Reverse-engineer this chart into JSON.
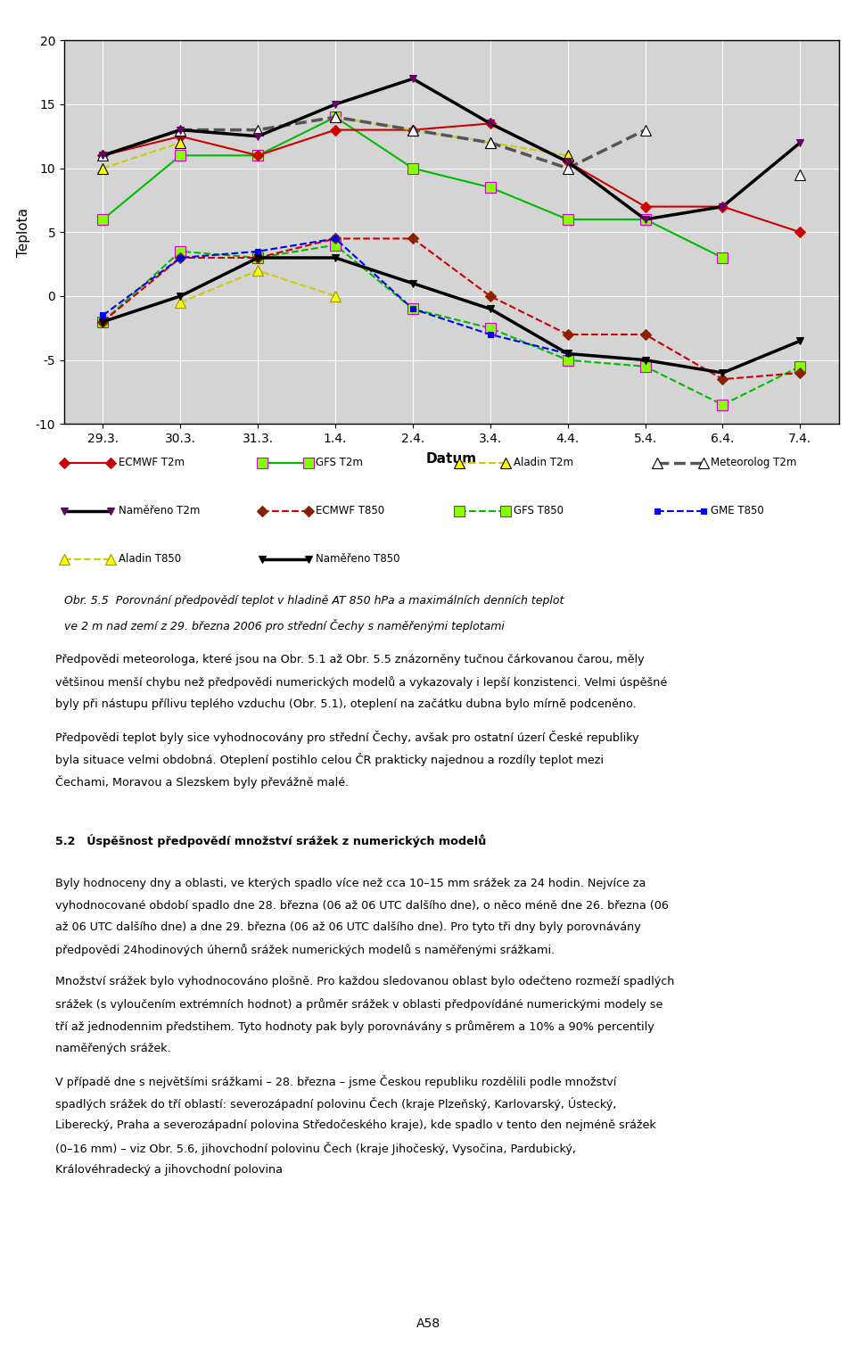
{
  "x_labels": [
    "29.3.",
    "30.3.",
    "31.3.",
    "1.4.",
    "2.4.",
    "3.4.",
    "4.4.",
    "5.4.",
    "6.4.",
    "7.4."
  ],
  "x_values": [
    0,
    1,
    2,
    3,
    4,
    5,
    6,
    7,
    8,
    9
  ],
  "series": {
    "ECMWF T2m": {
      "values": [
        11,
        12.5,
        11,
        13,
        13,
        13.5,
        10.5,
        7,
        7,
        5
      ],
      "color": "#CC0000",
      "linestyle": "-",
      "marker": "D",
      "markercolor": "#CC0000",
      "markeredgecolor": "#CC0000",
      "linewidth": 1.5,
      "markersize": 6
    },
    "Naměřeno T2m": {
      "values": [
        11,
        13,
        12.5,
        15,
        17,
        13.5,
        10.5,
        6,
        7,
        12
      ],
      "color": "#000000",
      "linestyle": "-",
      "marker": "v",
      "markercolor": "#660066",
      "markeredgecolor": "#660066",
      "linewidth": 2.5,
      "markersize": 6
    },
    "Aladin T850": {
      "values": [
        null,
        -0.5,
        2,
        0,
        null,
        null,
        null,
        null,
        null,
        null
      ],
      "color": "#CCCC00",
      "linestyle": "--",
      "marker": "^",
      "markercolor": "#FFFF00",
      "markeredgecolor": "#999900",
      "linewidth": 1.5,
      "markersize": 8
    },
    "GFS T2m": {
      "values": [
        6,
        11,
        11,
        14,
        10,
        8.5,
        6,
        6,
        3,
        null
      ],
      "color": "#00BB00",
      "linestyle": "-",
      "marker": "s",
      "markercolor": "#88FF00",
      "markeredgecolor": "#CC00CC",
      "linewidth": 1.5,
      "markersize": 8
    },
    "ECMWF T850": {
      "values": [
        -2,
        3,
        3,
        4.5,
        4.5,
        0,
        -3,
        -3,
        -6.5,
        -6
      ],
      "color": "#CC0000",
      "linestyle": "--",
      "marker": "D",
      "markercolor": "#882200",
      "markeredgecolor": "#882200",
      "linewidth": 1.5,
      "markersize": 6
    },
    "Naměřeno T850": {
      "values": [
        -2,
        0,
        3,
        3,
        1,
        -1,
        -4.5,
        -5,
        -6,
        -3.5
      ],
      "color": "#000000",
      "linestyle": "-",
      "marker": "v",
      "markercolor": "#000000",
      "markeredgecolor": "#000000",
      "linewidth": 2.5,
      "markersize": 6
    },
    "Aladin T2m": {
      "values": [
        10,
        12,
        null,
        14,
        13,
        12,
        11,
        null,
        null,
        null
      ],
      "color": "#CCCC00",
      "linestyle": "--",
      "marker": "^",
      "markercolor": "#FFFF00",
      "markeredgecolor": "#000000",
      "linewidth": 1.5,
      "markersize": 9
    },
    "GFS T850": {
      "values": [
        -2,
        3.5,
        3,
        4,
        -1,
        -2.5,
        -5,
        -5.5,
        -8.5,
        -5.5
      ],
      "color": "#00BB00",
      "linestyle": "--",
      "marker": "s",
      "markercolor": "#88FF00",
      "markeredgecolor": "#CC00CC",
      "linewidth": 1.5,
      "markersize": 8
    },
    "Meteorolog T2m": {
      "values": [
        11,
        13,
        13,
        14,
        13,
        12,
        10,
        13,
        null,
        9.5
      ],
      "color": "#555555",
      "linestyle": "--",
      "marker": "^",
      "markercolor": "#FFFFFF",
      "markeredgecolor": "#000000",
      "linewidth": 2.5,
      "markersize": 9
    },
    "GME T850": {
      "values": [
        -1.5,
        3,
        3.5,
        4.5,
        -1,
        -3,
        -4.5,
        null,
        null,
        null
      ],
      "color": "#0000EE",
      "linestyle": "--",
      "marker": "s",
      "markercolor": "#0000EE",
      "markeredgecolor": "#0000EE",
      "linewidth": 1.5,
      "markersize": 5
    }
  },
  "ylim": [
    -10,
    20
  ],
  "yticks": [
    -10,
    -5,
    0,
    5,
    10,
    15,
    20
  ],
  "ylabel": "Teplota",
  "xlabel": "Datum",
  "bg_color": "#FFFFFF",
  "plot_bg": "#D4D4D4",
  "grid_color": "#FFFFFF",
  "legend_rows": [
    [
      {
        "label": "ECMWF T2m",
        "color": "#CC0000",
        "linestyle": "-",
        "marker": "D",
        "mfc": "#CC0000",
        "mec": "#CC0000",
        "lw": 1.5,
        "ms": 6
      },
      {
        "label": "GFS T2m",
        "color": "#00BB00",
        "linestyle": "-",
        "marker": "s",
        "mfc": "#88FF00",
        "mec": "#CC00CC",
        "lw": 1.5,
        "ms": 8
      },
      {
        "label": "Aladin T2m",
        "color": "#CCCC00",
        "linestyle": "--",
        "marker": "^",
        "mfc": "#FFFF00",
        "mec": "#000000",
        "lw": 1.5,
        "ms": 9
      },
      {
        "label": "Meteorolog T2m",
        "color": "#555555",
        "linestyle": "--",
        "marker": "^",
        "mfc": "#FFFFFF",
        "mec": "#000000",
        "lw": 2.5,
        "ms": 9
      }
    ],
    [
      {
        "label": "Naměřeno T2m",
        "color": "#000000",
        "linestyle": "-",
        "marker": "v",
        "mfc": "#660066",
        "mec": "#660066",
        "lw": 2.5,
        "ms": 6
      },
      {
        "label": "ECMWF T850",
        "color": "#CC0000",
        "linestyle": "--",
        "marker": "D",
        "mfc": "#882200",
        "mec": "#882200",
        "lw": 1.5,
        "ms": 6
      },
      {
        "label": "GFS T850",
        "color": "#00BB00",
        "linestyle": "--",
        "marker": "s",
        "mfc": "#88FF00",
        "mec": "#CC00CC",
        "lw": 1.5,
        "ms": 8
      },
      {
        "label": "GME T850",
        "color": "#0000EE",
        "linestyle": "--",
        "marker": "s",
        "mfc": "#0000EE",
        "mec": "#0000EE",
        "lw": 1.5,
        "ms": 5
      }
    ],
    [
      {
        "label": "Aladin T850",
        "color": "#CCCC00",
        "linestyle": "--",
        "marker": "^",
        "mfc": "#FFFF00",
        "mec": "#999900",
        "lw": 1.5,
        "ms": 8
      },
      {
        "label": "Naměřeno T850",
        "color": "#000000",
        "linestyle": "-",
        "marker": "v",
        "mfc": "#000000",
        "mec": "#000000",
        "lw": 2.5,
        "ms": 6
      }
    ]
  ],
  "caption": "Obr. 5.5  Porovnání předpovědí teplot v hladině AT 850 hPa a maximálních denních teplot\nve 2 m nad zemí z 29. března 2006 pro střední Čechy s naměřenými teplotami",
  "para1": "Předpovědi meteorologa, které jsou na Obr. 5.1 až Obr. 5.5 znázorněny tučnou čárkovanou čarou, měly většinou menší chybu než předpovědi numerických modelů a vykazovaly i lepší konzistenci. Velmi úspěšné byly při nástupu přílivu teplého vzduchu (Obr. 5.1), oteplení na začátku dubna bylo mírně podceněno.",
  "para2": "    Předpovědi teplot byly sice vyhodnocovány pro střední Čechy, avšak pro ostatní úzerí České republiky byla situace velmi obdobná. Oteplení postihlo celou ČR prakticky najednou a rozdíly teplot mezi Čechami, Moravou a Slezskem byly převážně malé.",
  "heading": "5.2 Úspěšnost předpovědí množství srážek z numerických modelů",
  "para3": "    Byly hodnoceny dny a oblasti, ve kterých spadlo více než cca 10–15 mm srážek za 24 hodin. Nejvíce za vyhodnocované období spadlo dne 28. března (06 až 06 UTC dalšího dne), o něco méně dne 26. března (06 až 06 UTC dalšího dne) a dne 29. března (06 až 06 UTC dalšího dne). Pro tyto tři dny byly porovnávány předpovědi 24hodinových úhernů srážek numerických modelů s naměřenými srážkami.",
  "para4": "    Množství srážek bylo vyhodnocováno plošně. Pro každou sledovanou oblast bylo odečteno rozmeží spadlých srážek (s vyloučením extrémních hodnot) a průměr srážek v oblasti předpovídáné numerickými modely se tří až jednodennim předstihem. Tyto hodnoty pak byly porovnávány s průměrem a 10% a 90% percentily naměřených srážek.",
  "para5": "    V případě dne s největšími srážkami – 28. března – jsme Českou republiku rozdělili podle množství spadlých srážek do tří oblastí: severozápadní polovinu Čech (kraje Plzeňský, Karlovarský, Ústecký, Liberecký, Praha a severozápadní polovina Středočeského kraje), kde spadlo v tento den nejméně srážek (0–16 mm) – viz Obr. 5.6, jihovchodní polovinu Čech (kraje Jihočeský, Vysočina, Pardubický, Královéhradecký a jihovchodní polovina",
  "footer": "A58"
}
